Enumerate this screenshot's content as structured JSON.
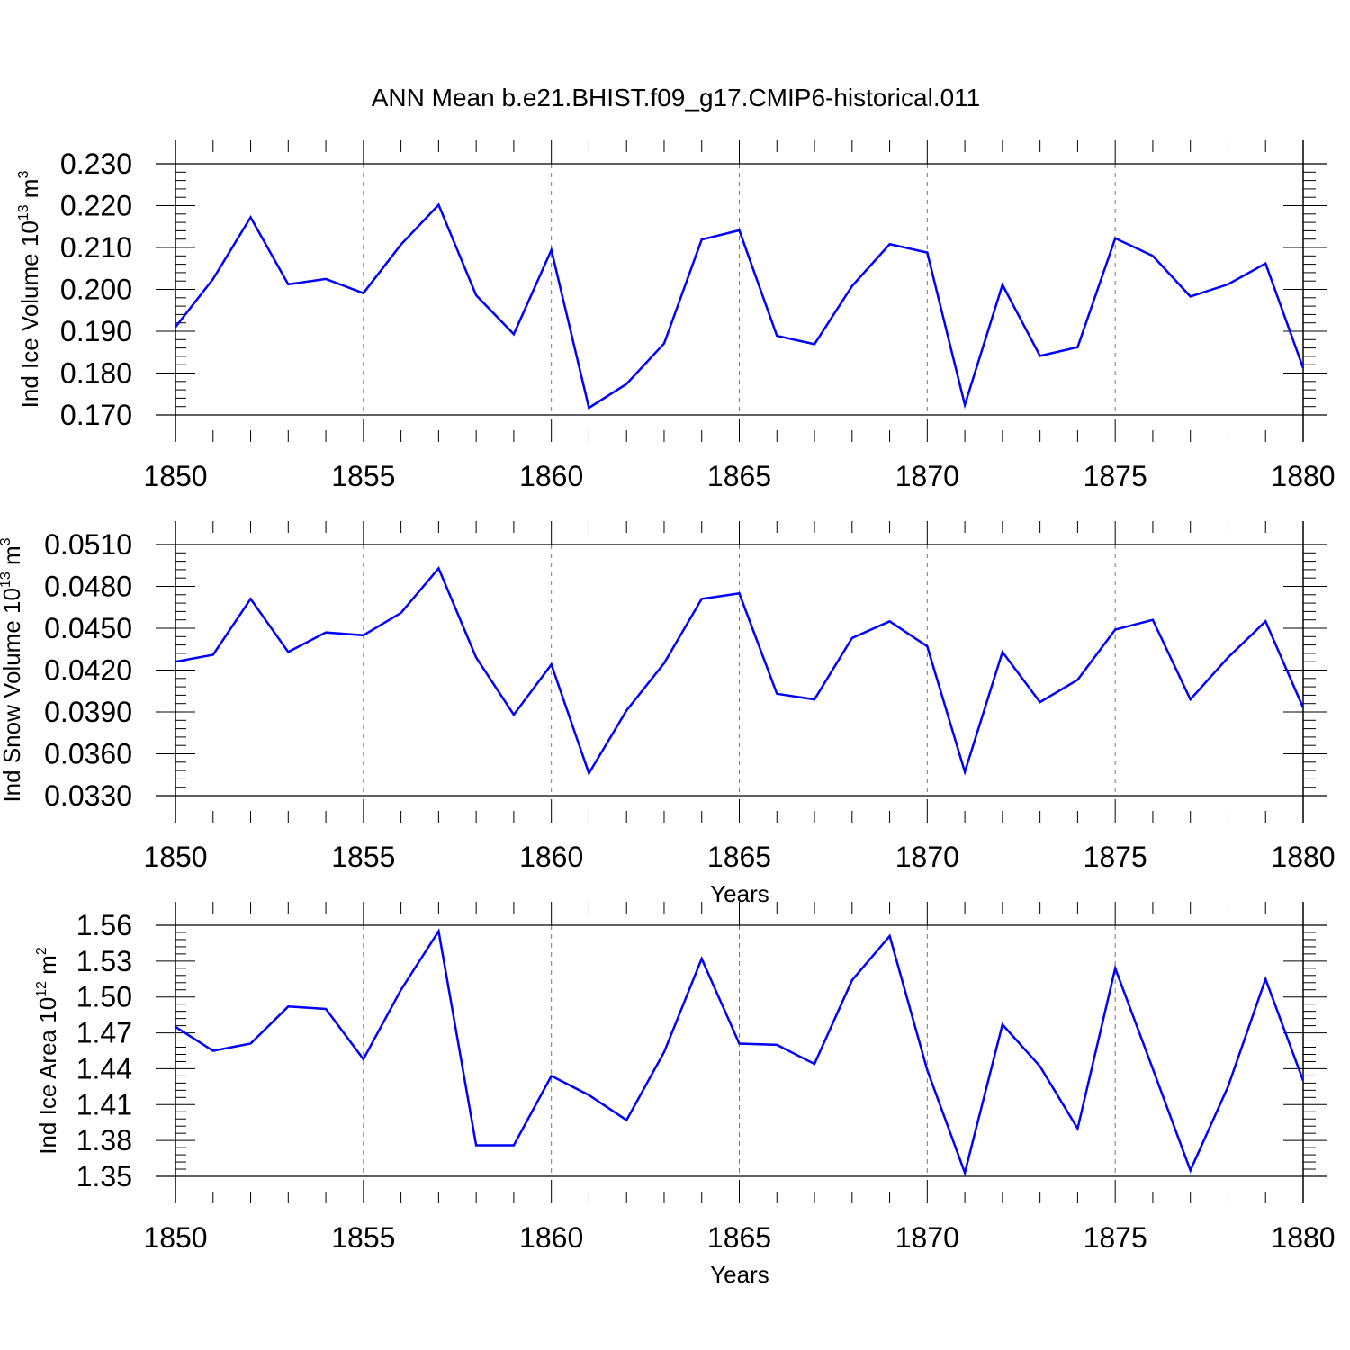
{
  "chart_data": [
    {
      "type": "line",
      "title": "ANN Mean b.e21.BHIST.f09_g17.CMIP6-historical.011",
      "ylabel": {
        "prefix": "Ind Ice Volume 10",
        "exponent": "13",
        "unit": " m",
        "unit_exponent": "3"
      },
      "xlabel": "",
      "ylim": [
        0.17,
        0.23
      ],
      "yticks": [
        "0.170",
        "0.180",
        "0.190",
        "0.200",
        "0.210",
        "0.220",
        "0.230"
      ],
      "xlim": [
        1850,
        1880
      ],
      "xticks": [
        "1850",
        "1855",
        "1860",
        "1865",
        "1870",
        "1875",
        "1880"
      ],
      "grid": "vertical dashed at major x ticks",
      "color": "#0000ff",
      "x": [
        1850,
        1851,
        1852,
        1853,
        1854,
        1855,
        1856,
        1857,
        1858,
        1859,
        1860,
        1861,
        1862,
        1863,
        1864,
        1865,
        1866,
        1867,
        1868,
        1869,
        1870,
        1871,
        1872,
        1873,
        1874,
        1875,
        1876,
        1877,
        1878,
        1879,
        1880
      ],
      "values": [
        0.191,
        0.2025,
        0.2172,
        0.2012,
        0.2025,
        0.1991,
        0.2107,
        0.2202,
        0.1986,
        0.1893,
        0.2094,
        0.1717,
        0.1774,
        0.1871,
        0.2119,
        0.2141,
        0.1889,
        0.1869,
        0.2008,
        0.2108,
        0.2088,
        0.1724,
        0.2011,
        0.1841,
        0.1862,
        0.2122,
        0.208,
        0.1983,
        0.2012,
        0.2062,
        0.1812
      ]
    },
    {
      "type": "line",
      "title": "",
      "ylabel": {
        "prefix": "Ind Snow Volume 10",
        "exponent": "13",
        "unit": " m",
        "unit_exponent": "3"
      },
      "xlabel": "Years",
      "ylim": [
        0.033,
        0.051
      ],
      "yticks": [
        "0.0330",
        "0.0360",
        "0.0390",
        "0.0420",
        "0.0450",
        "0.0480",
        "0.0510"
      ],
      "xlim": [
        1850,
        1880
      ],
      "xticks": [
        "1850",
        "1855",
        "1860",
        "1865",
        "1870",
        "1875",
        "1880"
      ],
      "grid": "vertical dashed at major x ticks",
      "color": "#0000ff",
      "x": [
        1850,
        1851,
        1852,
        1853,
        1854,
        1855,
        1856,
        1857,
        1858,
        1859,
        1860,
        1861,
        1862,
        1863,
        1864,
        1865,
        1866,
        1867,
        1868,
        1869,
        1870,
        1871,
        1872,
        1873,
        1874,
        1875,
        1876,
        1877,
        1878,
        1879,
        1880
      ],
      "values": [
        0.0426,
        0.0431,
        0.0471,
        0.0433,
        0.0447,
        0.0445,
        0.0461,
        0.0493,
        0.0429,
        0.0388,
        0.0424,
        0.0346,
        0.0391,
        0.0425,
        0.0471,
        0.0475,
        0.0403,
        0.0399,
        0.0443,
        0.0455,
        0.0437,
        0.0347,
        0.0433,
        0.0397,
        0.0413,
        0.0449,
        0.0456,
        0.0399,
        0.0429,
        0.0455,
        0.0393
      ]
    },
    {
      "type": "line",
      "title": "",
      "ylabel": {
        "prefix": "Ind Ice Area 10",
        "exponent": "12",
        "unit": " m",
        "unit_exponent": "2"
      },
      "xlabel": "Years",
      "ylim": [
        1.35,
        1.56
      ],
      "yticks": [
        "1.35",
        "1.38",
        "1.41",
        "1.44",
        "1.47",
        "1.50",
        "1.53",
        "1.56"
      ],
      "xlim": [
        1850,
        1880
      ],
      "xticks": [
        "1850",
        "1855",
        "1860",
        "1865",
        "1870",
        "1875",
        "1880"
      ],
      "grid": "vertical dashed at major x ticks",
      "color": "#0000ff",
      "x": [
        1850,
        1851,
        1852,
        1853,
        1854,
        1855,
        1856,
        1857,
        1858,
        1859,
        1860,
        1861,
        1862,
        1863,
        1864,
        1865,
        1866,
        1867,
        1868,
        1869,
        1870,
        1871,
        1872,
        1873,
        1874,
        1875,
        1876,
        1877,
        1878,
        1879,
        1880
      ],
      "values": [
        1.475,
        1.455,
        1.461,
        1.492,
        1.49,
        1.448,
        1.506,
        1.555,
        1.376,
        1.376,
        1.434,
        1.418,
        1.397,
        1.454,
        1.532,
        1.461,
        1.46,
        1.444,
        1.514,
        1.551,
        1.439,
        1.353,
        1.477,
        1.442,
        1.39,
        1.524,
        1.44,
        1.355,
        1.425,
        1.515,
        1.43
      ]
    }
  ]
}
